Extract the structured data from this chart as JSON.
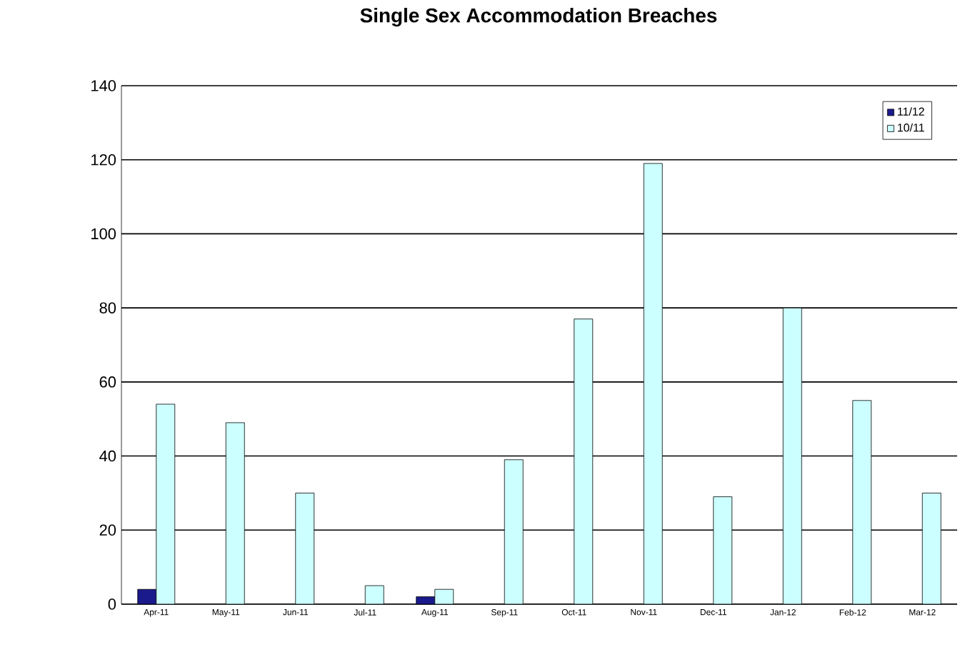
{
  "chart_data": {
    "type": "bar",
    "title": "Single Sex Accommodation Breaches",
    "categories": [
      "Apr-11",
      "May-11",
      "Jun-11",
      "Jul-11",
      "Aug-11",
      "Sep-11",
      "Oct-11",
      "Nov-11",
      "Dec-11",
      "Jan-12",
      "Feb-12",
      "Mar-12"
    ],
    "series": [
      {
        "name": "11/12",
        "color": "#1a1a8c",
        "values": [
          4,
          null,
          null,
          null,
          2,
          null,
          null,
          null,
          null,
          null,
          null,
          null
        ]
      },
      {
        "name": "10/11",
        "color": "#ccffff",
        "values": [
          54,
          49,
          30,
          5,
          4,
          39,
          77,
          119,
          29,
          80,
          55,
          30
        ]
      }
    ],
    "ylim": [
      0,
      140
    ],
    "yticks": [
      0,
      20,
      40,
      60,
      80,
      100,
      120,
      140
    ],
    "grid": "y",
    "legend": "top right"
  }
}
